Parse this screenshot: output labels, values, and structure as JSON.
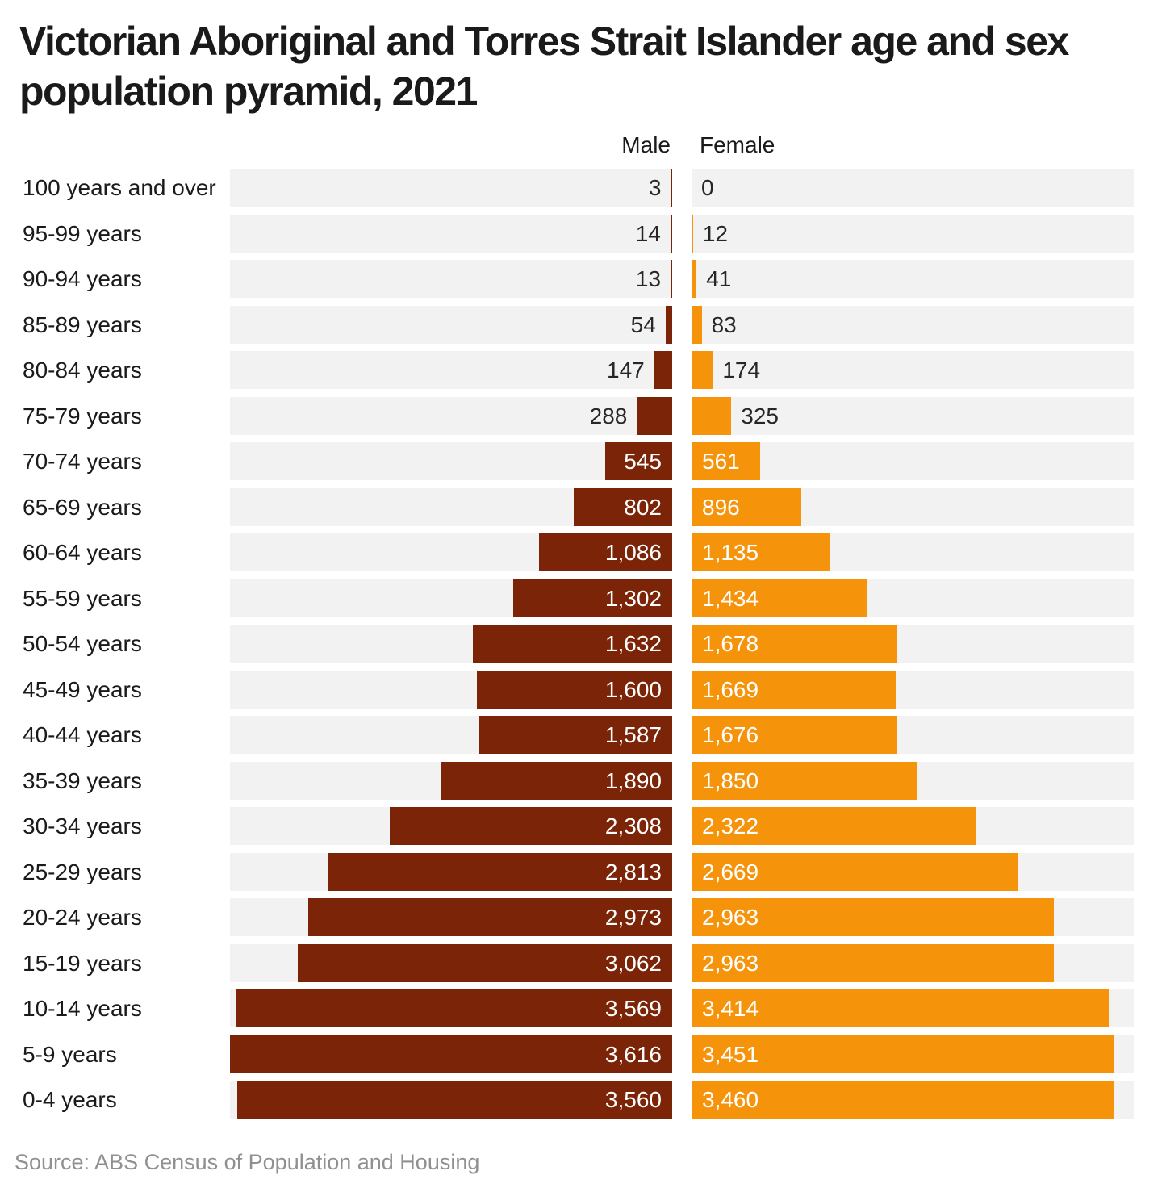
{
  "header": {
    "title_lines": [
      "Victorian Aboriginal and Torres Strait Islander age and sex",
      "population pyramid, 2021"
    ]
  },
  "column_headers": {
    "male": "Male",
    "female": "Female"
  },
  "source": "Source: ABS Census of Population and Housing",
  "colors": {
    "male_bar": "#7c2407",
    "female_bar": "#f5930b",
    "row_track": "#f2f2f2",
    "title_text": "#1a1a1a",
    "value_inside_text": "#ffffff",
    "value_outside_text": "#262626",
    "source_text": "#909090"
  },
  "chart_data": {
    "type": "bar",
    "subtype": "population-pyramid",
    "title": "Victorian Aboriginal and Torres Strait Islander age and sex population pyramid, 2021",
    "source": "ABS Census of Population and Housing",
    "categories": [
      "100 years and over",
      "95-99 years",
      "90-94 years",
      "85-89 years",
      "80-84 years",
      "75-79 years",
      "70-74 years",
      "65-69 years",
      "60-64 years",
      "55-59 years",
      "50-54 years",
      "45-49 years",
      "40-44 years",
      "35-39 years",
      "30-34 years",
      "25-29 years",
      "20-24 years",
      "15-19 years",
      "10-14 years",
      "5-9 years",
      "0-4 years"
    ],
    "series": [
      {
        "name": "Male",
        "side": "left",
        "color": "#7c2407",
        "values": [
          3,
          14,
          13,
          54,
          147,
          288,
          545,
          802,
          1086,
          1302,
          1632,
          1600,
          1587,
          1890,
          2308,
          2813,
          2973,
          3062,
          3569,
          3616,
          3560
        ]
      },
      {
        "name": "Female",
        "side": "right",
        "color": "#f5930b",
        "values": [
          0,
          12,
          41,
          83,
          174,
          325,
          561,
          896,
          1135,
          1434,
          1678,
          1669,
          1676,
          1850,
          2322,
          2669,
          2963,
          2963,
          3414,
          3451,
          3460
        ]
      }
    ],
    "value_axis_max": 3616,
    "grid": false,
    "legend_position": "column-headers-top"
  }
}
